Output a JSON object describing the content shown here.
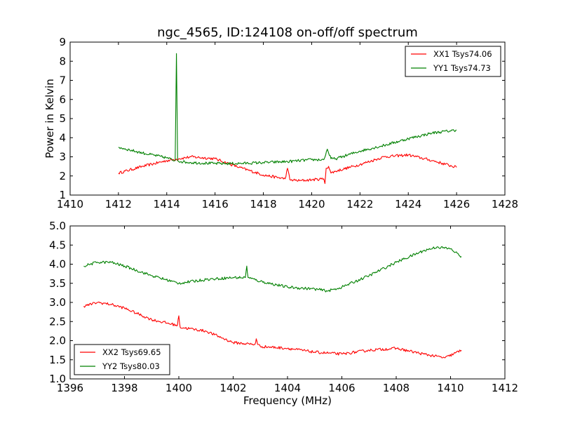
{
  "figure": {
    "title": "ngc_4565, ID:124108 on-off/off spectrum"
  },
  "chart_data": [
    {
      "type": "line",
      "ylabel": "Power in Kelvin",
      "xlabel": "",
      "xlim": [
        1410,
        1428
      ],
      "ylim": [
        1,
        9
      ],
      "xticks": [
        1410,
        1412,
        1414,
        1416,
        1418,
        1420,
        1422,
        1424,
        1426,
        1428
      ],
      "yticks": [
        1,
        2,
        3,
        4,
        5,
        6,
        7,
        8,
        9
      ],
      "ytick_labels": [
        "1",
        "2",
        "3",
        "4",
        "5",
        "6",
        "7",
        "8",
        "9"
      ],
      "legend_position": "top-right",
      "series": [
        {
          "name": "XX1 Tsys74.06",
          "color": "#ff0000",
          "x": [
            1412,
            1413,
            1414,
            1414.5,
            1415,
            1416,
            1417,
            1418,
            1418.9,
            1419,
            1419.1,
            1419.5,
            1420,
            1420.5,
            1420.55,
            1420.6,
            1420.7,
            1420.8,
            1421,
            1422,
            1423,
            1424,
            1425,
            1426
          ],
          "y": [
            2.15,
            2.5,
            2.8,
            2.9,
            3.0,
            2.9,
            2.45,
            2.05,
            1.85,
            2.4,
            1.8,
            1.75,
            1.8,
            1.85,
            1.6,
            2.4,
            2.5,
            2.15,
            2.25,
            2.6,
            3.0,
            3.1,
            2.8,
            2.45
          ]
        },
        {
          "name": "YY1 Tsys74.73",
          "color": "#008000",
          "x": [
            1412,
            1413,
            1414,
            1414.35,
            1414.4,
            1414.45,
            1414.6,
            1415,
            1416,
            1417,
            1418,
            1419,
            1420,
            1420.5,
            1420.65,
            1420.7,
            1420.8,
            1421,
            1422,
            1423,
            1424,
            1425,
            1426
          ],
          "y": [
            3.5,
            3.2,
            2.95,
            2.8,
            8.4,
            2.8,
            2.75,
            2.7,
            2.65,
            2.65,
            2.7,
            2.75,
            2.85,
            2.85,
            3.4,
            3.2,
            2.9,
            2.9,
            3.3,
            3.6,
            3.95,
            4.25,
            4.4
          ]
        }
      ]
    },
    {
      "type": "line",
      "xlabel": "Frequency (MHz)",
      "ylabel": "",
      "xlim": [
        1396,
        1412
      ],
      "ylim": [
        1.0,
        5.0
      ],
      "xticks": [
        1396,
        1398,
        1400,
        1402,
        1404,
        1406,
        1408,
        1410,
        1412
      ],
      "yticks": [
        1.0,
        1.5,
        2.0,
        2.5,
        3.0,
        3.5,
        4.0,
        4.5,
        5.0
      ],
      "ytick_labels": [
        "1.0",
        "1.5",
        "2.0",
        "2.5",
        "3.0",
        "3.5",
        "4.0",
        "4.5",
        "5.0"
      ],
      "legend_position": "bottom-left",
      "series": [
        {
          "name": "XX2 Tsys69.65",
          "color": "#ff0000",
          "x": [
            1396.5,
            1397,
            1397.5,
            1398,
            1399,
            1399.95,
            1400,
            1400.05,
            1401,
            1402,
            1402.8,
            1402.85,
            1402.9,
            1403,
            1404,
            1405,
            1406,
            1407,
            1408,
            1409,
            1409.8,
            1410.4
          ],
          "y": [
            2.9,
            3.0,
            2.95,
            2.85,
            2.55,
            2.4,
            2.65,
            2.35,
            2.25,
            1.95,
            1.9,
            2.05,
            1.9,
            1.85,
            1.8,
            1.7,
            1.65,
            1.75,
            1.8,
            1.65,
            1.55,
            1.75
          ]
        },
        {
          "name": "YY2 Tsys80.03",
          "color": "#008000",
          "x": [
            1396.5,
            1397,
            1397.5,
            1398,
            1399,
            1400,
            1401,
            1402,
            1402.45,
            1402.5,
            1402.55,
            1403,
            1404,
            1405,
            1405.5,
            1406,
            1407,
            1408,
            1409,
            1409.5,
            1410,
            1410.4
          ],
          "y": [
            3.95,
            4.05,
            4.05,
            3.95,
            3.7,
            3.5,
            3.6,
            3.65,
            3.65,
            3.95,
            3.65,
            3.55,
            3.4,
            3.35,
            3.3,
            3.4,
            3.7,
            4.05,
            4.35,
            4.45,
            4.4,
            4.2
          ]
        }
      ]
    }
  ]
}
